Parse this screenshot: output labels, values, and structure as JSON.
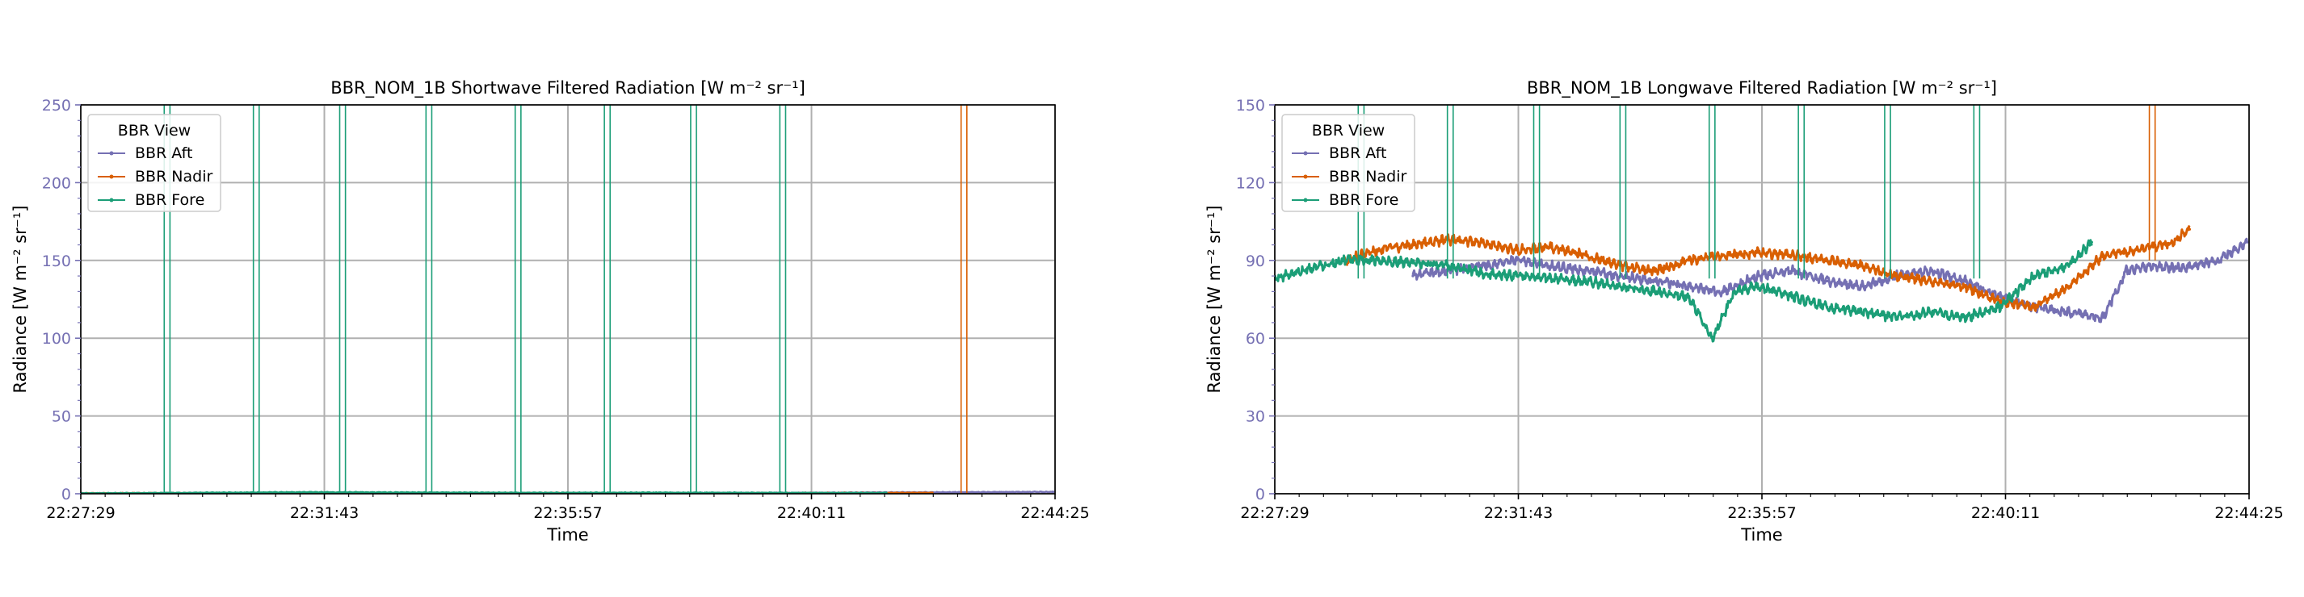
{
  "chart_data": [
    {
      "type": "line",
      "title": "BBR_NOM_1B Shortwave Filtered Radiation [W m⁻² sr⁻¹]",
      "xlabel": "Time",
      "ylabel": "Radiance [W m⁻² sr⁻¹]",
      "x_tick_labels": [
        "22:27:29",
        "22:31:43",
        "22:35:57",
        "22:40:11",
        "22:44:25"
      ],
      "xlim_minutes": [
        0,
        16.933
      ],
      "ylim": [
        0,
        250
      ],
      "y_ticks": [
        0,
        50,
        100,
        150,
        200,
        250
      ],
      "grid": true,
      "legend": {
        "title": "BBR View",
        "placement": "top-left"
      },
      "series": [
        {
          "name": "BBR Aft",
          "color": "#7570b3",
          "spikes": [],
          "x": [
            0.0,
            4.0,
            8.0,
            12.0,
            14.0,
            16.9
          ],
          "y": [
            0.3,
            0.5,
            0.4,
            0.5,
            0.8,
            1.2
          ]
        },
        {
          "name": "BBR Nadir",
          "color": "#d95f02",
          "spikes": [
            [
              15.3,
              15.4
            ]
          ],
          "x": [
            0.0,
            4.0,
            8.0,
            12.0,
            14.8
          ],
          "y": [
            0.3,
            0.6,
            0.5,
            0.4,
            0.6
          ]
        },
        {
          "name": "BBR Fore",
          "color": "#1b9e77",
          "spikes": [
            [
              1.45,
              1.55
            ],
            [
              3.0,
              3.1
            ],
            [
              4.5,
              4.6
            ],
            [
              6.0,
              6.1
            ],
            [
              7.55,
              7.65
            ],
            [
              9.1,
              9.2
            ],
            [
              10.6,
              10.7
            ],
            [
              12.15,
              12.25
            ]
          ],
          "x": [
            0.0,
            2.0,
            4.0,
            6.0,
            8.0,
            10.0,
            12.0,
            14.0
          ],
          "y": [
            0.3,
            0.6,
            1.0,
            0.8,
            0.6,
            0.7,
            0.6,
            0.5
          ]
        }
      ]
    },
    {
      "type": "line",
      "title": "BBR_NOM_1B Longwave Filtered Radiation [W m⁻² sr⁻¹]",
      "xlabel": "Time",
      "ylabel": "Radiance [W m⁻² sr⁻¹]",
      "x_tick_labels": [
        "22:27:29",
        "22:31:43",
        "22:35:57",
        "22:40:11",
        "22:44:25"
      ],
      "xlim_minutes": [
        0,
        16.933
      ],
      "ylim": [
        0,
        150
      ],
      "y_ticks": [
        0,
        30,
        60,
        90,
        120,
        150
      ],
      "grid": true,
      "legend": {
        "title": "BBR View",
        "placement": "top-left"
      },
      "series": [
        {
          "name": "BBR Aft",
          "color": "#7570b3",
          "spikes": [],
          "x": [
            2.4,
            3.0,
            3.6,
            4.2,
            4.8,
            5.4,
            6.0,
            6.6,
            7.2,
            7.8,
            8.4,
            9.0,
            9.6,
            10.2,
            10.8,
            11.4,
            12.0,
            12.6,
            13.2,
            13.8,
            14.4,
            14.8,
            15.2,
            15.6,
            16.0,
            16.4,
            16.9
          ],
          "y": [
            84,
            86,
            88,
            90,
            88,
            86,
            84,
            82,
            80,
            78,
            84,
            86,
            82,
            80,
            84,
            86,
            82,
            76,
            72,
            70,
            68,
            86,
            88,
            87,
            88,
            90,
            97
          ]
        },
        {
          "name": "BBR Nadir",
          "color": "#d95f02",
          "spikes": [
            [
              15.2,
              15.3
            ]
          ],
          "x": [
            1.2,
            1.8,
            2.4,
            3.0,
            3.6,
            4.2,
            4.8,
            5.4,
            6.0,
            6.6,
            7.2,
            7.8,
            8.4,
            9.0,
            9.6,
            10.2,
            10.8,
            11.4,
            12.0,
            12.6,
            13.2,
            13.8,
            14.4,
            15.0,
            15.6,
            15.9
          ],
          "y": [
            90,
            94,
            96,
            98,
            97,
            94,
            95,
            92,
            88,
            86,
            90,
            92,
            93,
            92,
            90,
            88,
            84,
            82,
            80,
            74,
            72,
            80,
            92,
            94,
            97,
            102
          ]
        },
        {
          "name": "BBR Fore",
          "color": "#1b9e77",
          "spikes": [
            [
              1.45,
              1.55
            ],
            [
              3.0,
              3.1
            ],
            [
              4.5,
              4.6
            ],
            [
              6.0,
              6.1
            ],
            [
              7.55,
              7.65
            ],
            [
              9.1,
              9.2
            ],
            [
              10.6,
              10.7
            ],
            [
              12.15,
              12.25
            ]
          ],
          "x": [
            0.0,
            0.6,
            1.2,
            1.8,
            2.4,
            3.0,
            3.6,
            4.2,
            4.8,
            5.4,
            6.0,
            6.6,
            7.2,
            7.6,
            8.0,
            8.4,
            9.0,
            9.6,
            10.2,
            10.8,
            11.4,
            12.0,
            12.6,
            13.2,
            13.8,
            14.2
          ],
          "y": [
            83,
            87,
            90,
            90,
            89,
            88,
            85,
            84,
            83,
            82,
            80,
            78,
            76,
            60,
            78,
            80,
            76,
            72,
            70,
            68,
            70,
            68,
            72,
            84,
            88,
            97
          ]
        }
      ]
    }
  ]
}
